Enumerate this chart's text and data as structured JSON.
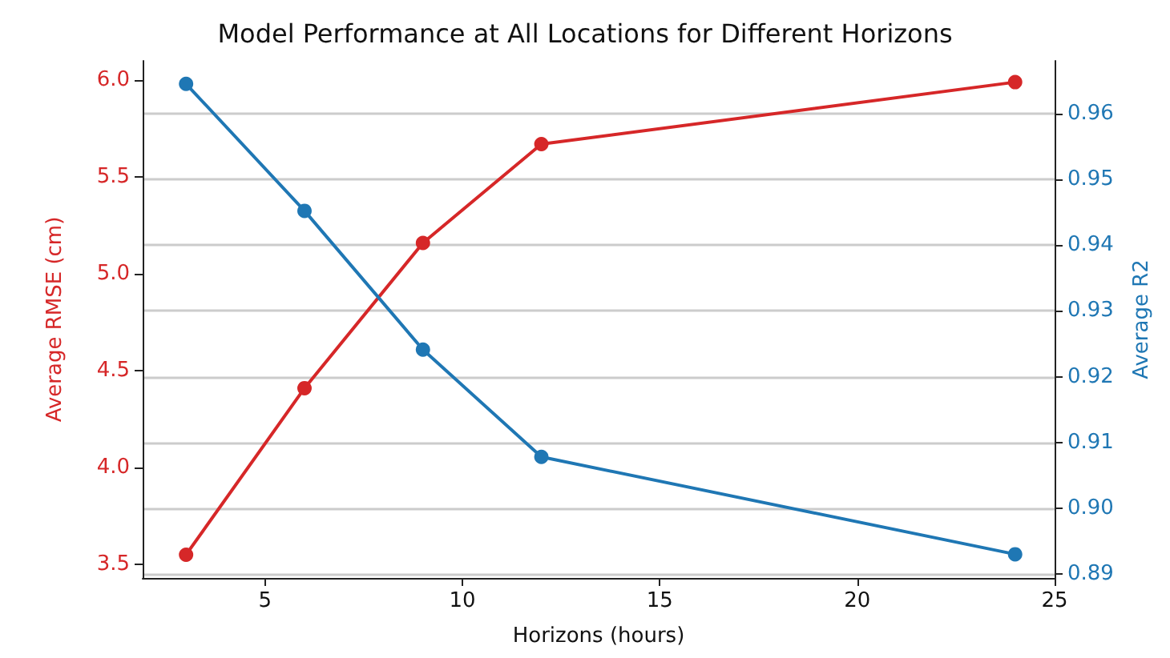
{
  "chart_data": {
    "type": "line",
    "title": "Model Performance at All Locations for Different Horizons",
    "xlabel": "Horizons (hours)",
    "ylabel": "Average RMSE (cm)",
    "y2label": "Average R2",
    "x": [
      3,
      6,
      9,
      12,
      24
    ],
    "series": [
      {
        "color": "#d62728",
        "values": [
          3.55,
          4.41,
          5.16,
          5.67,
          5.99
        ]
      },
      {
        "color": "#1f77b4",
        "axis": "y2",
        "values": [
          0.9645,
          0.9452,
          0.9241,
          0.9078,
          0.893
        ]
      }
    ],
    "xlim": [
      1.9,
      25
    ],
    "xticks": [
      5,
      10,
      15,
      20,
      25
    ],
    "ylim": [
      3.43,
      6.1
    ],
    "yticks": [
      3.5,
      {
        "value": 4,
        "label": "4.0"
      },
      4.5,
      {
        "value": 5,
        "label": "5.0"
      },
      5.5,
      {
        "value": 6,
        "label": "6.0"
      }
    ],
    "y2lim": [
      0.8894,
      0.968
    ],
    "y2ticks": [
      0.89,
      {
        "value": 0.9,
        "label": "0.90"
      },
      0.91,
      0.92,
      0.93,
      0.94,
      0.95,
      0.96
    ],
    "grid": "y2",
    "marker": "circle",
    "line_style": "solid"
  }
}
